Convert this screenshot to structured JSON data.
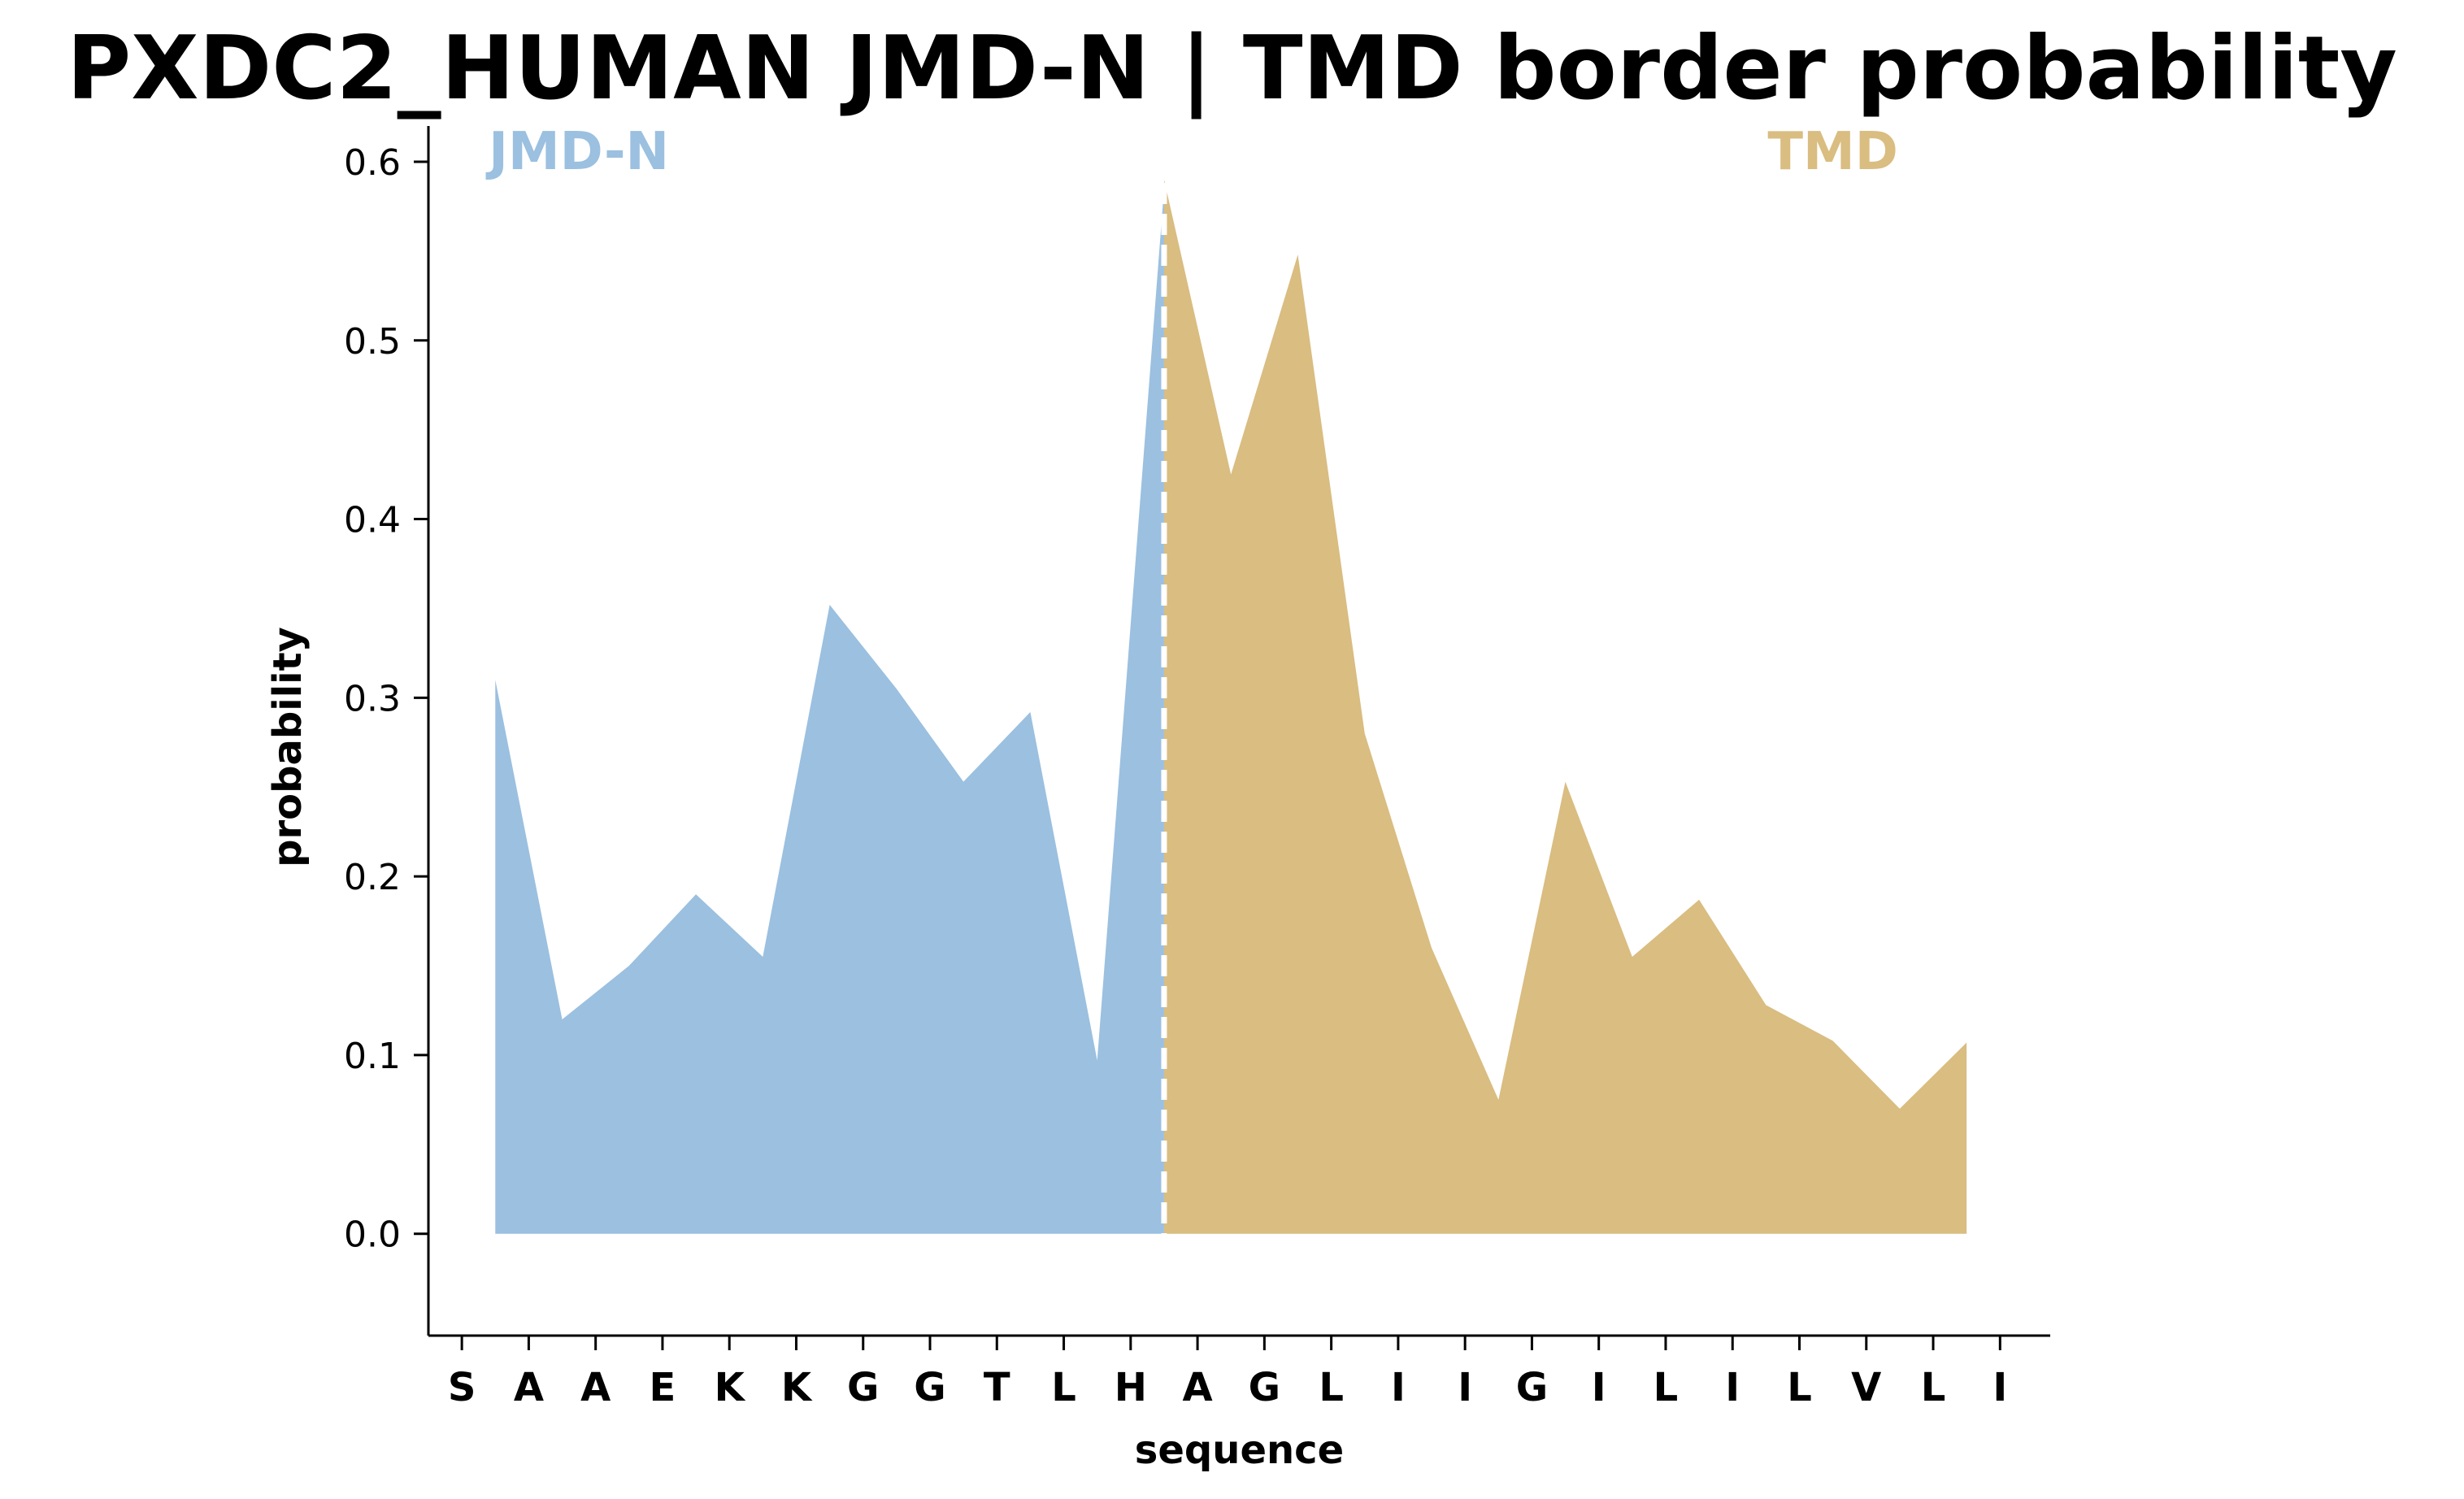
{
  "chart_data": {
    "type": "area",
    "title": "PXDC2_HUMAN JMD-N | TMD border probability",
    "xlabel": "sequence",
    "ylabel": "probability",
    "ylim": [
      -0.057,
      0.62
    ],
    "yticks": [
      0.0,
      0.1,
      0.2,
      0.3,
      0.4,
      0.5,
      0.6
    ],
    "ytick_labels": [
      "0.0",
      "0.1",
      "0.2",
      "0.3",
      "0.4",
      "0.5",
      "0.6"
    ],
    "categories": [
      "S",
      "A",
      "A",
      "E",
      "K",
      "K",
      "G",
      "G",
      "T",
      "L",
      "H",
      "A",
      "G",
      "L",
      "I",
      "I",
      "G",
      "I",
      "L",
      "I",
      "L",
      "V",
      "L",
      "I"
    ],
    "border_x": 10.5,
    "series": [
      {
        "name": "JMD-N",
        "color": "#9bc0e0",
        "x": [
          0.5,
          1.5,
          2.5,
          3.5,
          4.5,
          5.5,
          6.5,
          7.5,
          8.5,
          9.5,
          10.5
        ],
        "values": [
          0.31,
          0.12,
          0.15,
          0.19,
          0.155,
          0.352,
          0.305,
          0.253,
          0.292,
          0.097,
          0.585
        ]
      },
      {
        "name": "TMD",
        "color": "#d9bd81",
        "x": [
          10.5,
          11.5,
          12.5,
          13.5,
          14.5,
          15.5,
          16.5,
          17.5,
          18.5,
          19.5,
          20.5,
          21.5,
          22.5
        ],
        "values": [
          0.59,
          0.425,
          0.548,
          0.28,
          0.16,
          0.075,
          0.253,
          0.155,
          0.187,
          0.128,
          0.108,
          0.07,
          0.107
        ]
      }
    ],
    "grid": false,
    "legend": "none"
  }
}
